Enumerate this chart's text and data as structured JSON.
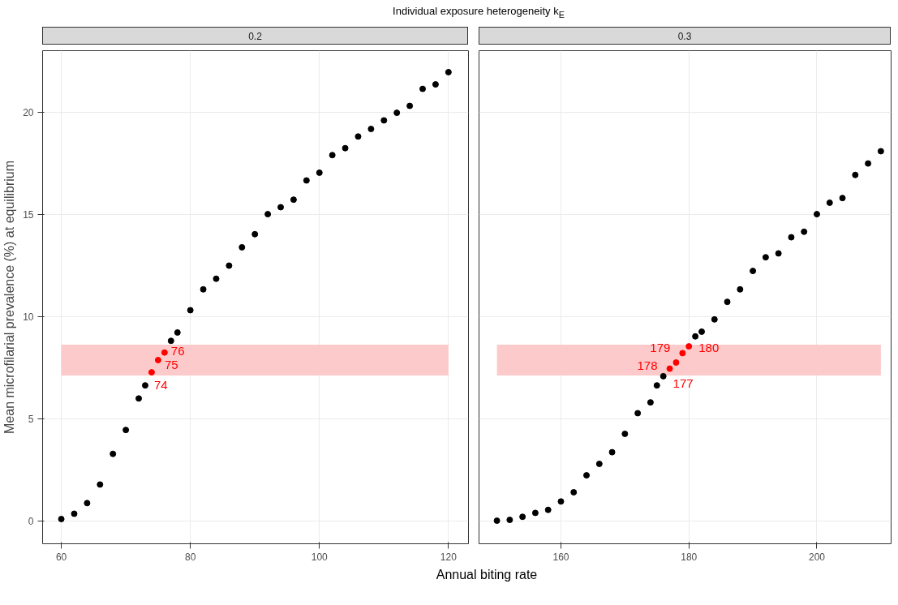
{
  "chart_data": [
    {
      "type": "scatter",
      "title": "Individual exposure heterogeneity k$_{E}$",
      "subtitle": "0.2",
      "xlabel": "Annual biting rate",
      "ylabel": "Mean microfilarial prevalence (%) at equilibrium",
      "xlim": [
        57.1,
        123.1
      ],
      "xticks": [
        60,
        80,
        100,
        120
      ],
      "ylim": [
        -1.13,
        23.0
      ],
      "yticks": [
        0,
        5,
        10,
        15,
        20
      ],
      "grid": true,
      "marker": "circle",
      "series": [
        {
          "color": "#000000",
          "x": [
            60,
            62,
            64,
            66,
            68,
            70,
            72,
            73,
            77,
            78,
            80,
            82,
            84,
            86,
            88,
            90,
            92,
            94,
            96,
            98,
            100,
            102,
            104,
            106,
            108,
            110,
            112,
            114,
            116,
            118,
            120
          ],
          "values": [
            0.08,
            0.34,
            0.86,
            1.77,
            3.27,
            4.44,
            5.98,
            6.62,
            8.8,
            9.21,
            10.3,
            11.32,
            11.84,
            12.48,
            13.38,
            14.02,
            15.0,
            15.34,
            15.71,
            16.65,
            17.03,
            17.89,
            18.23,
            18.8,
            19.17,
            19.59,
            19.96,
            20.3,
            21.13,
            21.35,
            21.95
          ]
        },
        {
          "color": "#ff0000",
          "x": [
            74,
            75,
            76
          ],
          "values": [
            7.26,
            7.86,
            8.23
          ]
        }
      ],
      "bands": [
        {
          "axis": "y",
          "from": 7.11,
          "to": 8.61,
          "color": "#fccaca"
        }
      ],
      "annotations": [
        {
          "text": "74",
          "x": 74,
          "y": 7.26
        },
        {
          "text": "75",
          "x": 75,
          "y": 7.86
        },
        {
          "text": "76",
          "x": 76,
          "y": 8.23
        }
      ]
    },
    {
      "type": "scatter",
      "subtitle": "0.3",
      "tick_labels": "x",
      "xlim": [
        147.2,
        211.6
      ],
      "xticks": [
        160,
        180,
        200
      ],
      "ylim": [
        -1.13,
        23.0
      ],
      "yticks": [
        0,
        5,
        10,
        15,
        20
      ],
      "grid": true,
      "marker": "circle",
      "series": [
        {
          "color": "#000000",
          "x": [
            150,
            152,
            154,
            156,
            158,
            160,
            162,
            164,
            166,
            168,
            170,
            172,
            174,
            175,
            176,
            181,
            182,
            184,
            186,
            188,
            190,
            192,
            194,
            196,
            198,
            200,
            202,
            204,
            206,
            208,
            210
          ],
          "values": [
            0.0,
            0.04,
            0.19,
            0.38,
            0.53,
            0.94,
            1.39,
            2.22,
            2.78,
            3.35,
            4.25,
            5.26,
            5.79,
            6.62,
            7.07,
            9.02,
            9.25,
            9.85,
            10.71,
            11.32,
            12.22,
            12.89,
            13.08,
            13.87,
            14.14,
            15.0,
            15.56,
            15.79,
            16.92,
            17.48,
            18.08
          ]
        },
        {
          "color": "#ff0000",
          "x": [
            177,
            178,
            179,
            180
          ],
          "values": [
            7.44,
            7.74,
            8.2,
            8.53
          ]
        }
      ],
      "bands": [
        {
          "axis": "y",
          "from": 7.11,
          "to": 8.61,
          "color": "#fccaca"
        }
      ],
      "annotations": [
        {
          "text": "177",
          "x": 177,
          "y": 7.44
        },
        {
          "text": "178",
          "x": 178,
          "y": 7.74
        },
        {
          "text": "179",
          "x": 179,
          "y": 8.2
        },
        {
          "text": "180",
          "x": 180,
          "y": 8.53
        }
      ]
    }
  ]
}
